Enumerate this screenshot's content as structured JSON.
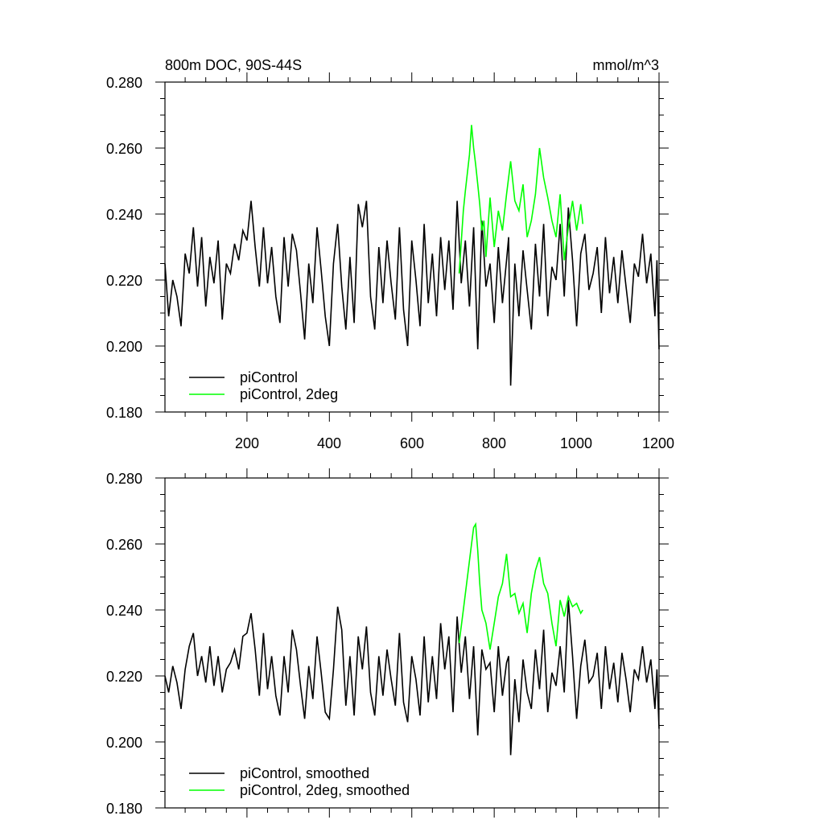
{
  "chart_data": [
    {
      "type": "line",
      "title": "800m DOC, 90S-44S",
      "units": "mmol/m^3",
      "xlim": [
        1,
        1200
      ],
      "ylim": [
        0.18,
        0.28
      ],
      "ytick_values": [
        0.18,
        0.2,
        0.22,
        0.24,
        0.26,
        0.28
      ],
      "ytick_labels": [
        "0.180",
        "0.200",
        "0.220",
        "0.240",
        "0.260",
        "0.280"
      ],
      "xtick_values": [
        200,
        400,
        600,
        800,
        1000,
        1200
      ],
      "xtick_labels": [
        "200",
        "400",
        "600",
        "800",
        "1000",
        "1200"
      ],
      "legend_position": "bottom-left",
      "series": [
        {
          "name": "piControl",
          "color": "#000000",
          "x": [
            1,
            10,
            20,
            30,
            40,
            50,
            60,
            70,
            80,
            90,
            100,
            110,
            120,
            130,
            140,
            150,
            160,
            170,
            180,
            190,
            200,
            210,
            220,
            230,
            240,
            250,
            260,
            270,
            280,
            290,
            300,
            310,
            320,
            330,
            340,
            350,
            360,
            370,
            380,
            390,
            400,
            410,
            420,
            430,
            440,
            450,
            460,
            470,
            480,
            490,
            500,
            510,
            520,
            530,
            540,
            550,
            560,
            570,
            580,
            590,
            600,
            610,
            620,
            630,
            640,
            650,
            660,
            670,
            680,
            690,
            700,
            710,
            720,
            730,
            740,
            750,
            760,
            770,
            780,
            790,
            800,
            810,
            820,
            830,
            835,
            840,
            850,
            860,
            870,
            880,
            890,
            900,
            910,
            920,
            930,
            940,
            950,
            960,
            970,
            980,
            990,
            1000,
            1010,
            1020,
            1030,
            1040,
            1050,
            1060,
            1070,
            1080,
            1090,
            1100,
            1110,
            1120,
            1130,
            1140,
            1150,
            1160,
            1170,
            1180,
            1190,
            1195,
            1200
          ],
          "y": [
            0.225,
            0.209,
            0.22,
            0.215,
            0.206,
            0.228,
            0.222,
            0.236,
            0.218,
            0.233,
            0.212,
            0.227,
            0.219,
            0.232,
            0.208,
            0.225,
            0.222,
            0.231,
            0.226,
            0.235,
            0.232,
            0.244,
            0.23,
            0.218,
            0.236,
            0.219,
            0.23,
            0.215,
            0.207,
            0.233,
            0.218,
            0.234,
            0.229,
            0.216,
            0.202,
            0.225,
            0.213,
            0.236,
            0.223,
            0.209,
            0.2,
            0.225,
            0.237,
            0.218,
            0.205,
            0.227,
            0.207,
            0.243,
            0.236,
            0.244,
            0.215,
            0.205,
            0.23,
            0.213,
            0.232,
            0.219,
            0.208,
            0.236,
            0.211,
            0.2,
            0.232,
            0.22,
            0.206,
            0.237,
            0.213,
            0.228,
            0.209,
            0.233,
            0.217,
            0.232,
            0.211,
            0.244,
            0.219,
            0.232,
            0.212,
            0.236,
            0.199,
            0.238,
            0.218,
            0.225,
            0.207,
            0.23,
            0.213,
            0.226,
            0.233,
            0.188,
            0.225,
            0.209,
            0.229,
            0.217,
            0.205,
            0.231,
            0.215,
            0.237,
            0.209,
            0.224,
            0.22,
            0.237,
            0.215,
            0.242,
            0.226,
            0.206,
            0.228,
            0.234,
            0.217,
            0.222,
            0.23,
            0.21,
            0.233,
            0.216,
            0.227,
            0.213,
            0.229,
            0.218,
            0.207,
            0.225,
            0.221,
            0.234,
            0.219,
            0.228,
            0.209,
            0.226,
            0.199
          ]
        },
        {
          "name": "piControl, 2deg",
          "color": "#00ff00",
          "x": [
            715,
            725,
            730,
            740,
            745,
            750,
            755,
            760,
            765,
            770,
            775,
            780,
            790,
            800,
            810,
            815,
            820,
            830,
            840,
            850,
            860,
            870,
            880,
            890,
            900,
            910,
            920,
            930,
            940,
            950,
            960,
            970,
            980,
            990,
            1000,
            1010,
            1015
          ],
          "y": [
            0.222,
            0.241,
            0.247,
            0.258,
            0.267,
            0.26,
            0.255,
            0.249,
            0.243,
            0.235,
            0.238,
            0.227,
            0.245,
            0.23,
            0.241,
            0.238,
            0.235,
            0.246,
            0.256,
            0.244,
            0.241,
            0.249,
            0.233,
            0.238,
            0.246,
            0.26,
            0.251,
            0.245,
            0.238,
            0.233,
            0.246,
            0.226,
            0.236,
            0.244,
            0.235,
            0.243,
            0.237
          ]
        }
      ]
    },
    {
      "type": "line",
      "xlim": [
        1,
        1200
      ],
      "ylim": [
        0.18,
        0.28
      ],
      "ytick_values": [
        0.18,
        0.2,
        0.22,
        0.24,
        0.26,
        0.28
      ],
      "ytick_labels": [
        "0.180",
        "0.200",
        "0.220",
        "0.240",
        "0.260",
        "0.280"
      ],
      "xtick_values": [
        200,
        400,
        600,
        800,
        1000,
        1200
      ],
      "legend_position": "bottom-left",
      "series": [
        {
          "name": "piControl, smoothed",
          "color": "#000000",
          "x": [
            1,
            10,
            20,
            30,
            40,
            50,
            60,
            70,
            80,
            90,
            100,
            110,
            120,
            130,
            140,
            150,
            160,
            170,
            180,
            190,
            200,
            210,
            220,
            230,
            240,
            250,
            260,
            270,
            280,
            290,
            300,
            310,
            320,
            330,
            340,
            350,
            360,
            370,
            380,
            390,
            400,
            410,
            420,
            430,
            440,
            450,
            460,
            470,
            480,
            490,
            500,
            510,
            520,
            530,
            540,
            550,
            560,
            570,
            580,
            590,
            600,
            610,
            620,
            630,
            640,
            650,
            660,
            670,
            680,
            690,
            700,
            710,
            720,
            730,
            740,
            750,
            760,
            770,
            780,
            790,
            800,
            810,
            820,
            830,
            835,
            840,
            850,
            860,
            870,
            880,
            890,
            900,
            910,
            920,
            930,
            940,
            950,
            960,
            970,
            980,
            990,
            1000,
            1010,
            1020,
            1030,
            1040,
            1050,
            1060,
            1070,
            1080,
            1090,
            1100,
            1110,
            1120,
            1130,
            1140,
            1150,
            1160,
            1170,
            1180,
            1190,
            1195,
            1200
          ],
          "y": [
            0.22,
            0.215,
            0.223,
            0.218,
            0.21,
            0.222,
            0.229,
            0.233,
            0.22,
            0.226,
            0.218,
            0.229,
            0.217,
            0.226,
            0.215,
            0.222,
            0.224,
            0.228,
            0.222,
            0.232,
            0.233,
            0.239,
            0.228,
            0.214,
            0.233,
            0.216,
            0.226,
            0.214,
            0.208,
            0.226,
            0.215,
            0.234,
            0.228,
            0.217,
            0.207,
            0.223,
            0.213,
            0.232,
            0.221,
            0.209,
            0.207,
            0.222,
            0.241,
            0.234,
            0.211,
            0.226,
            0.208,
            0.232,
            0.222,
            0.235,
            0.215,
            0.208,
            0.226,
            0.214,
            0.228,
            0.219,
            0.211,
            0.233,
            0.212,
            0.206,
            0.226,
            0.219,
            0.208,
            0.232,
            0.212,
            0.226,
            0.213,
            0.236,
            0.222,
            0.232,
            0.209,
            0.238,
            0.221,
            0.232,
            0.213,
            0.229,
            0.202,
            0.228,
            0.222,
            0.224,
            0.209,
            0.229,
            0.214,
            0.224,
            0.226,
            0.196,
            0.219,
            0.206,
            0.225,
            0.215,
            0.21,
            0.228,
            0.216,
            0.234,
            0.209,
            0.221,
            0.217,
            0.229,
            0.215,
            0.243,
            0.226,
            0.207,
            0.223,
            0.231,
            0.218,
            0.22,
            0.227,
            0.21,
            0.229,
            0.216,
            0.224,
            0.212,
            0.227,
            0.219,
            0.209,
            0.222,
            0.219,
            0.229,
            0.218,
            0.225,
            0.21,
            0.222,
            0.204
          ]
        },
        {
          "name": "piControl, 2deg, smoothed",
          "color": "#00ff00",
          "x": [
            715,
            725,
            735,
            745,
            750,
            755,
            760,
            765,
            770,
            775,
            780,
            790,
            795,
            800,
            810,
            820,
            830,
            840,
            850,
            860,
            870,
            880,
            890,
            900,
            910,
            920,
            930,
            940,
            950,
            960,
            970,
            980,
            990,
            1000,
            1010,
            1015
          ],
          "y": [
            0.23,
            0.24,
            0.25,
            0.26,
            0.265,
            0.266,
            0.258,
            0.248,
            0.24,
            0.238,
            0.236,
            0.228,
            0.232,
            0.236,
            0.244,
            0.248,
            0.257,
            0.244,
            0.245,
            0.239,
            0.242,
            0.233,
            0.245,
            0.252,
            0.256,
            0.248,
            0.245,
            0.236,
            0.229,
            0.243,
            0.238,
            0.244,
            0.241,
            0.242,
            0.239,
            0.24
          ]
        }
      ]
    }
  ]
}
